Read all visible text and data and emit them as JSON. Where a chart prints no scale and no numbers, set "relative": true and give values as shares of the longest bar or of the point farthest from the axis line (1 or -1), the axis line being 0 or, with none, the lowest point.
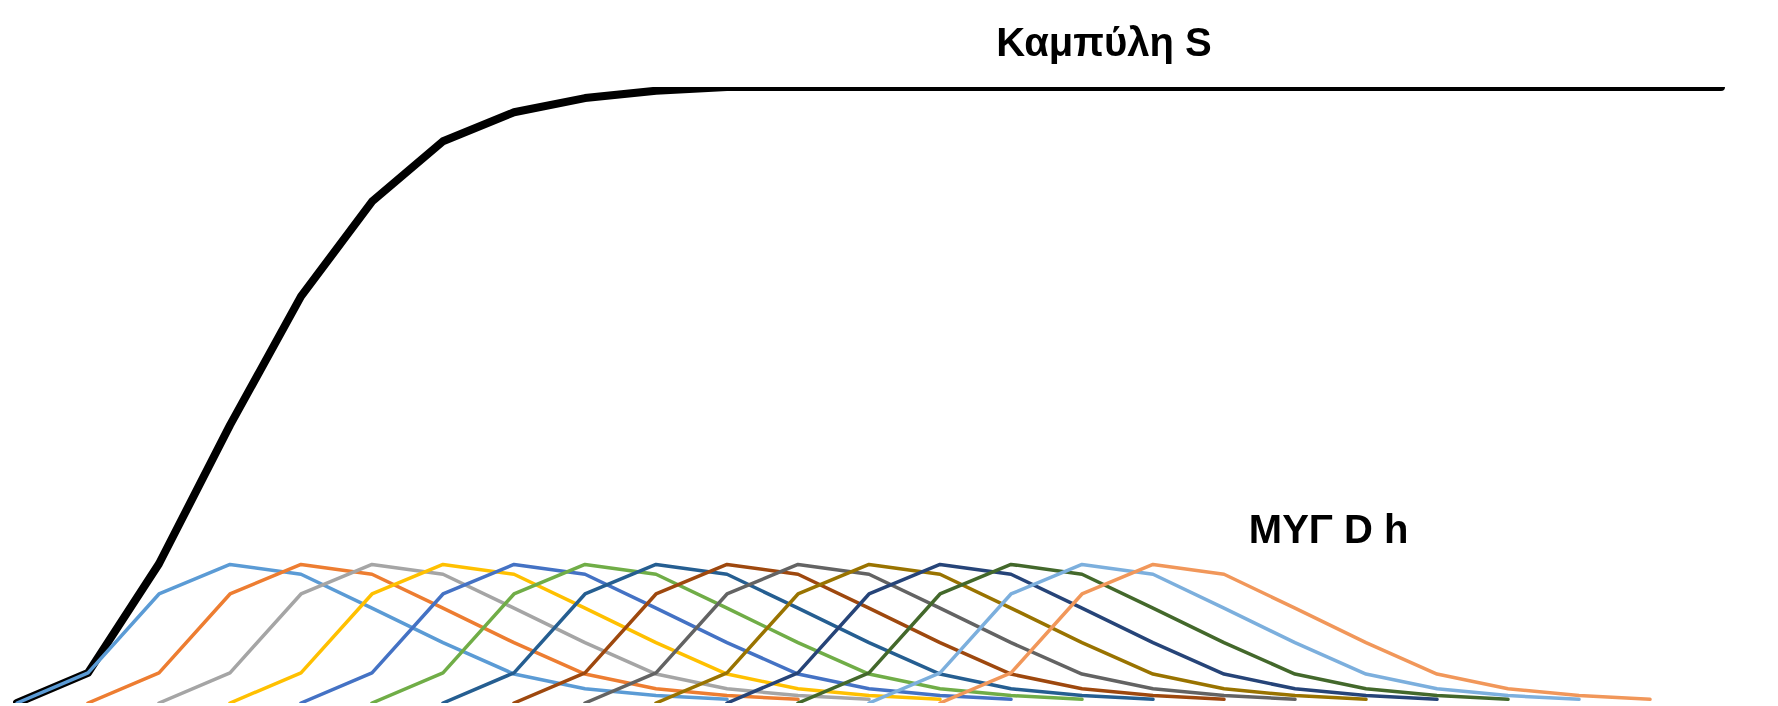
{
  "chart_data": {
    "type": "line",
    "relative": true,
    "legend": false,
    "marker": "none",
    "line_style": "solid",
    "grid": false,
    "tick_labels": false,
    "categories": [
      null,
      null,
      null,
      null,
      null,
      null,
      null,
      null,
      null,
      null,
      null,
      null,
      null,
      null,
      null,
      null,
      null,
      null,
      null,
      null,
      null,
      null,
      null,
      null,
      null
    ],
    "series": [
      {
        "name": "Καμπύλη S",
        "color": "#000000",
        "values": [
          0,
          0.049,
          0.226,
          0.451,
          0.66,
          0.814,
          0.912,
          0.959,
          0.982,
          0.994,
          1,
          1,
          1,
          1,
          1,
          1,
          1,
          1,
          1,
          1,
          1,
          1,
          1,
          1,
          1
        ]
      },
      {
        "color": "#5b9bd5",
        "values": [
          0,
          0.049,
          0.177,
          0.225,
          0.209,
          0.154,
          0.098,
          0.047,
          0.023,
          0.012,
          0.006,
          null,
          null,
          null,
          null,
          null,
          null,
          null,
          null,
          null,
          null,
          null,
          null,
          null,
          null
        ]
      },
      {
        "color": "#ed7d31",
        "values": [
          null,
          0,
          0.049,
          0.177,
          0.225,
          0.209,
          0.154,
          0.098,
          0.047,
          0.023,
          0.012,
          0.006,
          null,
          null,
          null,
          null,
          null,
          null,
          null,
          null,
          null,
          null,
          null,
          null,
          null
        ]
      },
      {
        "color": "#a5a5a5",
        "values": [
          null,
          null,
          0,
          0.049,
          0.177,
          0.225,
          0.209,
          0.154,
          0.098,
          0.047,
          0.023,
          0.012,
          0.006,
          null,
          null,
          null,
          null,
          null,
          null,
          null,
          null,
          null,
          null,
          null,
          null
        ]
      },
      {
        "color": "#ffc000",
        "values": [
          null,
          null,
          null,
          0,
          0.049,
          0.177,
          0.225,
          0.209,
          0.154,
          0.098,
          0.047,
          0.023,
          0.012,
          0.006,
          null,
          null,
          null,
          null,
          null,
          null,
          null,
          null,
          null,
          null,
          null
        ]
      },
      {
        "color": "#4472c4",
        "values": [
          null,
          null,
          null,
          null,
          0,
          0.049,
          0.177,
          0.225,
          0.209,
          0.154,
          0.098,
          0.047,
          0.023,
          0.012,
          0.006,
          null,
          null,
          null,
          null,
          null,
          null,
          null,
          null,
          null,
          null
        ]
      },
      {
        "color": "#70ad47",
        "values": [
          null,
          null,
          null,
          null,
          null,
          0,
          0.049,
          0.177,
          0.225,
          0.209,
          0.154,
          0.098,
          0.047,
          0.023,
          0.012,
          0.006,
          null,
          null,
          null,
          null,
          null,
          null,
          null,
          null,
          null
        ]
      },
      {
        "color": "#255e91",
        "values": [
          null,
          null,
          null,
          null,
          null,
          null,
          0,
          0.049,
          0.177,
          0.225,
          0.209,
          0.154,
          0.098,
          0.047,
          0.023,
          0.012,
          0.006,
          null,
          null,
          null,
          null,
          null,
          null,
          null,
          null
        ]
      },
      {
        "color": "#9e480e",
        "values": [
          null,
          null,
          null,
          null,
          null,
          null,
          null,
          0,
          0.049,
          0.177,
          0.225,
          0.209,
          0.154,
          0.098,
          0.047,
          0.023,
          0.012,
          0.006,
          null,
          null,
          null,
          null,
          null,
          null,
          null
        ]
      },
      {
        "color": "#636363",
        "values": [
          null,
          null,
          null,
          null,
          null,
          null,
          null,
          null,
          0,
          0.049,
          0.177,
          0.225,
          0.209,
          0.154,
          0.098,
          0.047,
          0.023,
          0.012,
          0.006,
          null,
          null,
          null,
          null,
          null,
          null
        ]
      },
      {
        "color": "#997300",
        "values": [
          null,
          null,
          null,
          null,
          null,
          null,
          null,
          null,
          null,
          0,
          0.049,
          0.177,
          0.225,
          0.209,
          0.154,
          0.098,
          0.047,
          0.023,
          0.012,
          0.006,
          null,
          null,
          null,
          null,
          null
        ]
      },
      {
        "color": "#264478",
        "values": [
          null,
          null,
          null,
          null,
          null,
          null,
          null,
          null,
          null,
          null,
          0,
          0.049,
          0.177,
          0.225,
          0.209,
          0.154,
          0.098,
          0.047,
          0.023,
          0.012,
          0.006,
          null,
          null,
          null,
          null
        ]
      },
      {
        "color": "#43682b",
        "values": [
          null,
          null,
          null,
          null,
          null,
          null,
          null,
          null,
          null,
          null,
          null,
          0,
          0.049,
          0.177,
          0.225,
          0.209,
          0.154,
          0.098,
          0.047,
          0.023,
          0.012,
          0.006,
          null,
          null,
          null
        ]
      },
      {
        "color": "#7cafdd",
        "values": [
          null,
          null,
          null,
          null,
          null,
          null,
          null,
          null,
          null,
          null,
          null,
          null,
          0,
          0.049,
          0.177,
          0.225,
          0.209,
          0.154,
          0.098,
          0.047,
          0.023,
          0.012,
          0.006,
          null,
          null
        ]
      },
      {
        "name": "ΜΥΓ D h",
        "color": "#f1975a",
        "values": [
          null,
          null,
          null,
          null,
          null,
          null,
          null,
          null,
          null,
          null,
          null,
          null,
          null,
          0,
          0.049,
          0.177,
          0.225,
          0.209,
          0.154,
          0.098,
          0.047,
          0.023,
          0.012,
          0.006,
          null
        ]
      }
    ]
  }
}
